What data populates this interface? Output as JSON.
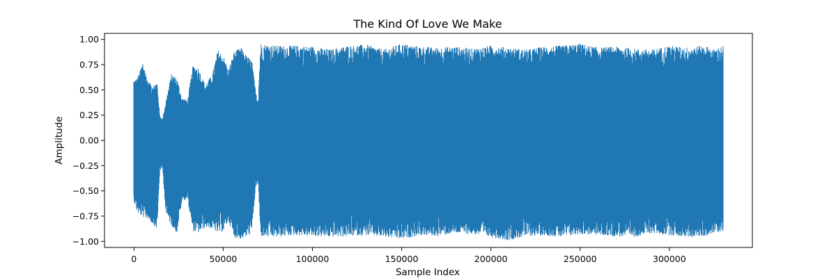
{
  "chart_data": {
    "type": "line",
    "title": "The Kind Of Love We Make",
    "xlabel": "Sample Index",
    "ylabel": "Amplitude",
    "xlim": [
      -16500,
      346500
    ],
    "ylim": [
      -1.06,
      1.06
    ],
    "x_ticks": [
      0,
      50000,
      100000,
      150000,
      200000,
      250000,
      300000
    ],
    "x_tick_labels": [
      "0",
      "50000",
      "100000",
      "150000",
      "200000",
      "250000",
      "300000"
    ],
    "y_ticks": [
      1.0,
      0.75,
      0.5,
      0.25,
      0.0,
      -0.25,
      -0.5,
      -0.75,
      -1.0
    ],
    "y_tick_labels": [
      "1.00",
      "0.75",
      "0.50",
      "0.25",
      "0.00",
      "−0.25",
      "−0.50",
      "−0.75",
      "−1.00"
    ],
    "grid": false,
    "series": [
      {
        "color": "#1f77b4",
        "x_range": [
          0,
          330000
        ],
        "envelope": {
          "x": [
            0,
            2000,
            5000,
            8000,
            11000,
            13000,
            14500,
            16000,
            18000,
            21000,
            24000,
            27000,
            30000,
            33000,
            36000,
            40000,
            44000,
            47000,
            50000,
            53000,
            56000,
            60000,
            63000,
            66000,
            68000,
            69500,
            71000,
            75000,
            80000,
            90000,
            100000,
            110000,
            120000,
            130000,
            140000,
            150000,
            160000,
            170000,
            180000,
            190000,
            200000,
            210000,
            220000,
            230000,
            240000,
            250000,
            260000,
            270000,
            280000,
            290000,
            300000,
            310000,
            320000,
            325000,
            330000
          ],
          "max": [
            0.6,
            0.62,
            0.78,
            0.58,
            0.55,
            0.58,
            0.25,
            0.22,
            0.4,
            0.66,
            0.62,
            0.42,
            0.4,
            0.74,
            0.72,
            0.55,
            0.66,
            0.9,
            0.84,
            0.7,
            0.88,
            0.92,
            0.84,
            0.8,
            0.52,
            0.4,
            0.96,
            0.95,
            0.94,
            0.94,
            0.93,
            0.9,
            0.94,
            0.95,
            0.9,
            0.96,
            0.93,
            0.92,
            0.93,
            0.91,
            0.94,
            0.92,
            0.9,
            0.93,
            0.94,
            0.96,
            0.92,
            0.93,
            0.91,
            0.9,
            0.94,
            0.92,
            0.94,
            0.9,
            0.94
          ],
          "min": [
            -0.6,
            -0.72,
            -0.76,
            -0.78,
            -0.84,
            -0.88,
            -0.3,
            -0.28,
            -0.74,
            -0.84,
            -0.92,
            -0.6,
            -0.58,
            -0.9,
            -0.92,
            -0.86,
            -0.88,
            -0.92,
            -0.9,
            -0.8,
            -0.96,
            -0.98,
            -0.96,
            -0.92,
            -0.5,
            -0.4,
            -0.95,
            -0.96,
            -0.96,
            -0.94,
            -0.95,
            -0.96,
            -0.95,
            -0.94,
            -0.96,
            -0.98,
            -0.94,
            -0.95,
            -0.92,
            -0.93,
            -0.96,
            -0.99,
            -0.95,
            -0.94,
            -0.96,
            -0.93,
            -0.94,
            -0.95,
            -0.96,
            -0.92,
            -0.94,
            -0.96,
            -0.95,
            -0.92,
            -0.9
          ]
        }
      }
    ]
  }
}
